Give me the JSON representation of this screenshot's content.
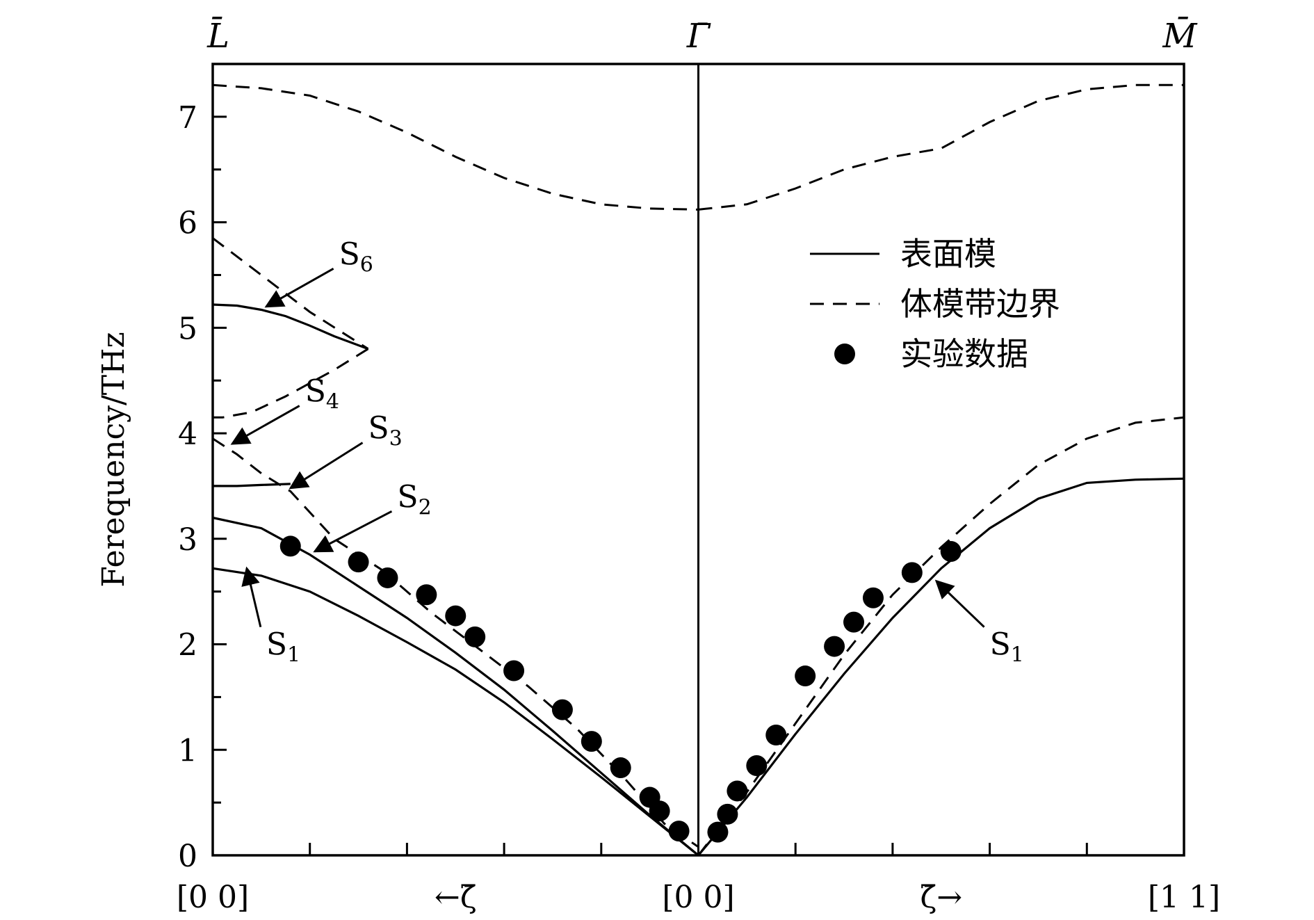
{
  "chart_data": {
    "type": "line",
    "ylabel": "Ferequency/THz",
    "ylim": [
      0,
      7.5
    ],
    "yticks": [
      "0",
      "1",
      "2",
      "3",
      "4",
      "5",
      "6",
      "7"
    ],
    "xlabels": {
      "left": "[0  0]",
      "left_mid": "←ζ̄",
      "center": "[0  0]",
      "right_mid": "ζ̄→",
      "right": "[1  1]"
    },
    "top_labels": {
      "left": "L̄",
      "center": "Γ̄",
      "right": "M̄"
    },
    "legend": {
      "placement": "upper-right",
      "items": [
        {
          "label": "表面模",
          "style": "solid"
        },
        {
          "label": "体模带边界",
          "style": "dashed"
        },
        {
          "label": "实验数据",
          "style": "marker"
        }
      ]
    },
    "x_note": "x in reduced units: left segment 0 (L̄) to 1 (Γ̄); right segment 1 (Γ̄) to 2 (M̄)",
    "series": [
      {
        "style": "dashed",
        "x": [
          0,
          0.1,
          0.2,
          0.3,
          0.4,
          0.5,
          0.6,
          0.7,
          0.8,
          0.9,
          1.0
        ],
        "y": [
          7.3,
          7.27,
          7.2,
          7.05,
          6.85,
          6.62,
          6.42,
          6.27,
          6.17,
          6.13,
          6.12
        ]
      },
      {
        "style": "dashed",
        "x": [
          1.0,
          1.1,
          1.2,
          1.3,
          1.4,
          1.5,
          1.6,
          1.7,
          1.8,
          1.9,
          2.0
        ],
        "y": [
          6.12,
          6.17,
          6.32,
          6.5,
          6.62,
          6.7,
          6.95,
          7.15,
          7.26,
          7.3,
          7.3
        ]
      },
      {
        "style": "dashed",
        "x": [
          0,
          0.1,
          0.2,
          0.32
        ],
        "y": [
          5.85,
          5.5,
          5.15,
          4.8
        ]
      },
      {
        "style": "solid",
        "x": [
          0,
          0.05,
          0.1,
          0.15,
          0.2,
          0.25,
          0.32
        ],
        "y": [
          5.22,
          5.21,
          5.17,
          5.11,
          5.02,
          4.92,
          4.8
        ]
      },
      {
        "style": "dashed",
        "x": [
          0.32,
          0.25,
          0.15,
          0.08,
          0.02,
          0
        ],
        "y": [
          4.8,
          4.6,
          4.35,
          4.2,
          4.15,
          4.15
        ]
      },
      {
        "style": "dashed",
        "x": [
          0,
          0.05,
          0.1,
          0.16,
          0.25,
          0.35
        ],
        "y": [
          3.95,
          3.8,
          3.62,
          3.45,
          3.0,
          2.7
        ]
      },
      {
        "style": "solid",
        "x": [
          0,
          0.05,
          0.1,
          0.16
        ],
        "y": [
          3.5,
          3.5,
          3.51,
          3.52
        ]
      },
      {
        "style": "dashed",
        "x": [
          0.35,
          0.45,
          0.55,
          0.65,
          0.75,
          0.85,
          0.93,
          1.0
        ],
        "y": [
          2.7,
          2.3,
          1.95,
          1.6,
          1.2,
          0.72,
          0.3,
          0.08
        ]
      },
      {
        "style": "solid",
        "x": [
          0,
          0.1,
          0.2,
          0.3,
          0.4,
          0.5,
          0.6,
          0.7,
          0.8,
          0.9,
          1.0
        ],
        "y": [
          3.2,
          3.1,
          2.85,
          2.55,
          2.25,
          1.92,
          1.57,
          1.18,
          0.78,
          0.38,
          0
        ]
      },
      {
        "style": "solid",
        "x": [
          0,
          0.1,
          0.2,
          0.3,
          0.4,
          0.5,
          0.6,
          0.7,
          0.8,
          0.9,
          1.0
        ],
        "y": [
          2.72,
          2.65,
          2.5,
          2.27,
          2.02,
          1.76,
          1.45,
          1.1,
          0.74,
          0.37,
          0
        ]
      },
      {
        "style": "solid",
        "x": [
          1.0,
          1.1,
          1.2,
          1.3,
          1.4,
          1.5,
          1.6,
          1.7,
          1.8,
          1.9,
          2.0
        ],
        "y": [
          0,
          0.55,
          1.15,
          1.72,
          2.25,
          2.72,
          3.1,
          3.38,
          3.53,
          3.56,
          3.57
        ]
      },
      {
        "style": "dashed",
        "x": [
          1.0,
          1.1,
          1.2,
          1.3,
          1.4,
          1.5,
          1.6,
          1.7,
          1.8,
          1.9,
          2.0
        ],
        "y": [
          0,
          0.6,
          1.25,
          1.9,
          2.47,
          2.92,
          3.33,
          3.7,
          3.95,
          4.1,
          4.15
        ]
      }
    ],
    "points": [
      {
        "x": 0.16,
        "y": 2.93
      },
      {
        "x": 0.3,
        "y": 2.78
      },
      {
        "x": 0.36,
        "y": 2.63
      },
      {
        "x": 0.44,
        "y": 2.47
      },
      {
        "x": 0.5,
        "y": 2.27
      },
      {
        "x": 0.54,
        "y": 2.07
      },
      {
        "x": 0.62,
        "y": 1.75
      },
      {
        "x": 0.72,
        "y": 1.38
      },
      {
        "x": 0.78,
        "y": 1.08
      },
      {
        "x": 0.84,
        "y": 0.83
      },
      {
        "x": 0.9,
        "y": 0.55
      },
      {
        "x": 0.92,
        "y": 0.42
      },
      {
        "x": 0.96,
        "y": 0.23
      },
      {
        "x": 1.04,
        "y": 0.22
      },
      {
        "x": 1.06,
        "y": 0.39
      },
      {
        "x": 1.08,
        "y": 0.61
      },
      {
        "x": 1.12,
        "y": 0.85
      },
      {
        "x": 1.16,
        "y": 1.14
      },
      {
        "x": 1.22,
        "y": 1.7
      },
      {
        "x": 1.28,
        "y": 1.98
      },
      {
        "x": 1.32,
        "y": 2.21
      },
      {
        "x": 1.36,
        "y": 2.44
      },
      {
        "x": 1.44,
        "y": 2.68
      },
      {
        "x": 1.52,
        "y": 2.88
      }
    ],
    "annotations": [
      {
        "label": "S",
        "sub": "6",
        "x": 0.26,
        "y": 5.6,
        "arrow_to": [
          0.11,
          5.2
        ]
      },
      {
        "label": "S",
        "sub": "4",
        "x": 0.19,
        "y": 4.3,
        "arrow_to": [
          0.04,
          3.9
        ]
      },
      {
        "label": "S",
        "sub": "3",
        "x": 0.32,
        "y": 3.95,
        "arrow_to": [
          0.16,
          3.48
        ]
      },
      {
        "label": "S",
        "sub": "2",
        "x": 0.38,
        "y": 3.3,
        "arrow_to": [
          0.21,
          2.88
        ]
      },
      {
        "label": "S",
        "sub": "1",
        "x": 0.11,
        "y": 1.9,
        "arrow_to": [
          0.07,
          2.72
        ]
      },
      {
        "label": "S",
        "sub": "1",
        "x": 1.6,
        "y": 1.9,
        "arrow_to": [
          1.49,
          2.6
        ]
      }
    ]
  }
}
